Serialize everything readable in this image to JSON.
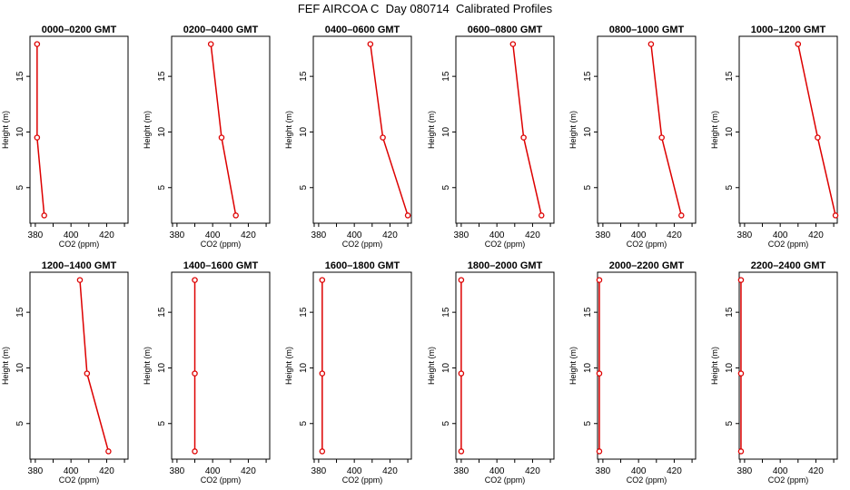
{
  "title": "FEF AIRCOA C  Day 080714  Calibrated Profiles",
  "colors": {
    "profile": "#dd0000",
    "axis": "#000000"
  },
  "chart_data": [
    {
      "type": "line",
      "title": "0000–0200 GMT",
      "xlabel": "CO2 (ppm)",
      "ylabel": "Height (m)",
      "xlim": [
        377,
        432
      ],
      "ylim": [
        1.8,
        18.6
      ],
      "xticks": [
        "380",
        "400",
        "420"
      ],
      "yticks": [
        "5",
        "10",
        "15"
      ],
      "grid": false,
      "points": [
        {
          "x": 381,
          "y": 17.9
        },
        {
          "x": 381,
          "y": 9.5
        },
        {
          "x": 385,
          "y": 2.5
        }
      ]
    },
    {
      "type": "line",
      "title": "0200–0400 GMT",
      "xlabel": "CO2 (ppm)",
      "ylabel": "Height (m)",
      "xlim": [
        377,
        432
      ],
      "ylim": [
        1.8,
        18.6
      ],
      "xticks": [
        "380",
        "400",
        "420"
      ],
      "yticks": [
        "5",
        "10",
        "15"
      ],
      "grid": false,
      "points": [
        {
          "x": 399,
          "y": 17.9
        },
        {
          "x": 405,
          "y": 9.5
        },
        {
          "x": 413,
          "y": 2.5
        }
      ]
    },
    {
      "type": "line",
      "title": "0400–0600 GMT",
      "xlabel": "CO2 (ppm)",
      "ylabel": "Height (m)",
      "xlim": [
        377,
        432
      ],
      "ylim": [
        1.8,
        18.6
      ],
      "xticks": [
        "380",
        "400",
        "420"
      ],
      "yticks": [
        "5",
        "10",
        "15"
      ],
      "grid": false,
      "points": [
        {
          "x": 409,
          "y": 17.9
        },
        {
          "x": 416,
          "y": 9.5
        },
        {
          "x": 430,
          "y": 2.5
        }
      ]
    },
    {
      "type": "line",
      "title": "0600–0800 GMT",
      "xlabel": "CO2 (ppm)",
      "ylabel": "Height (m)",
      "xlim": [
        377,
        432
      ],
      "ylim": [
        1.8,
        18.6
      ],
      "xticks": [
        "380",
        "400",
        "420"
      ],
      "yticks": [
        "5",
        "10",
        "15"
      ],
      "grid": false,
      "points": [
        {
          "x": 409,
          "y": 17.9
        },
        {
          "x": 415,
          "y": 9.5
        },
        {
          "x": 425,
          "y": 2.5
        }
      ]
    },
    {
      "type": "line",
      "title": "0800–1000 GMT",
      "xlabel": "CO2 (ppm)",
      "ylabel": "Height (m)",
      "xlim": [
        377,
        432
      ],
      "ylim": [
        1.8,
        18.6
      ],
      "xticks": [
        "380",
        "400",
        "420"
      ],
      "yticks": [
        "5",
        "10",
        "15"
      ],
      "grid": false,
      "points": [
        {
          "x": 407,
          "y": 17.9
        },
        {
          "x": 413,
          "y": 9.5
        },
        {
          "x": 424,
          "y": 2.5
        }
      ]
    },
    {
      "type": "line",
      "title": "1000–1200 GMT",
      "xlabel": "CO2 (ppm)",
      "ylabel": "Height (m)",
      "xlim": [
        377,
        432
      ],
      "ylim": [
        1.8,
        18.6
      ],
      "xticks": [
        "380",
        "400",
        "420"
      ],
      "yticks": [
        "5",
        "10",
        "15"
      ],
      "grid": false,
      "points": [
        {
          "x": 410,
          "y": 17.9
        },
        {
          "x": 421,
          "y": 9.5
        },
        {
          "x": 431,
          "y": 2.5
        }
      ]
    },
    {
      "type": "line",
      "title": "1200–1400 GMT",
      "xlabel": "CO2 (ppm)",
      "ylabel": "Height (m)",
      "xlim": [
        377,
        432
      ],
      "ylim": [
        1.8,
        18.6
      ],
      "xticks": [
        "380",
        "400",
        "420"
      ],
      "yticks": [
        "5",
        "10",
        "15"
      ],
      "grid": false,
      "points": [
        {
          "x": 405,
          "y": 17.9
        },
        {
          "x": 409,
          "y": 9.5
        },
        {
          "x": 421,
          "y": 2.5
        }
      ]
    },
    {
      "type": "line",
      "title": "1400–1600 GMT",
      "xlabel": "CO2 (ppm)",
      "ylabel": "Height (m)",
      "xlim": [
        377,
        432
      ],
      "ylim": [
        1.8,
        18.6
      ],
      "xticks": [
        "380",
        "400",
        "420"
      ],
      "yticks": [
        "5",
        "10",
        "15"
      ],
      "grid": false,
      "points": [
        {
          "x": 390,
          "y": 17.9
        },
        {
          "x": 390,
          "y": 9.5
        },
        {
          "x": 390,
          "y": 2.5
        }
      ]
    },
    {
      "type": "line",
      "title": "1600–1800 GMT",
      "xlabel": "CO2 (ppm)",
      "ylabel": "Height (m)",
      "xlim": [
        377,
        432
      ],
      "ylim": [
        1.8,
        18.6
      ],
      "xticks": [
        "380",
        "400",
        "420"
      ],
      "yticks": [
        "5",
        "10",
        "15"
      ],
      "grid": false,
      "points": [
        {
          "x": 382,
          "y": 17.9
        },
        {
          "x": 382,
          "y": 9.5
        },
        {
          "x": 382,
          "y": 2.5
        }
      ]
    },
    {
      "type": "line",
      "title": "1800–2000 GMT",
      "xlabel": "CO2 (ppm)",
      "ylabel": "Height (m)",
      "xlim": [
        377,
        432
      ],
      "ylim": [
        1.8,
        18.6
      ],
      "xticks": [
        "380",
        "400",
        "420"
      ],
      "yticks": [
        "5",
        "10",
        "15"
      ],
      "grid": false,
      "points": [
        {
          "x": 380,
          "y": 17.9
        },
        {
          "x": 380,
          "y": 9.5
        },
        {
          "x": 380,
          "y": 2.5
        }
      ]
    },
    {
      "type": "line",
      "title": "2000–2200 GMT",
      "xlabel": "CO2 (ppm)",
      "ylabel": "Height (m)",
      "xlim": [
        377,
        432
      ],
      "ylim": [
        1.8,
        18.6
      ],
      "xticks": [
        "380",
        "400",
        "420"
      ],
      "yticks": [
        "5",
        "10",
        "15"
      ],
      "grid": false,
      "points": [
        {
          "x": 378,
          "y": 17.9
        },
        {
          "x": 378,
          "y": 9.5
        },
        {
          "x": 378,
          "y": 2.5
        }
      ]
    },
    {
      "type": "line",
      "title": "2200–2400 GMT",
      "xlabel": "CO2 (ppm)",
      "ylabel": "Height (m)",
      "xlim": [
        377,
        432
      ],
      "ylim": [
        1.8,
        18.6
      ],
      "xticks": [
        "380",
        "400",
        "420"
      ],
      "yticks": [
        "5",
        "10",
        "15"
      ],
      "grid": false,
      "points": [
        {
          "x": 378,
          "y": 17.9
        },
        {
          "x": 378,
          "y": 9.5
        },
        {
          "x": 378,
          "y": 2.5
        }
      ]
    }
  ]
}
